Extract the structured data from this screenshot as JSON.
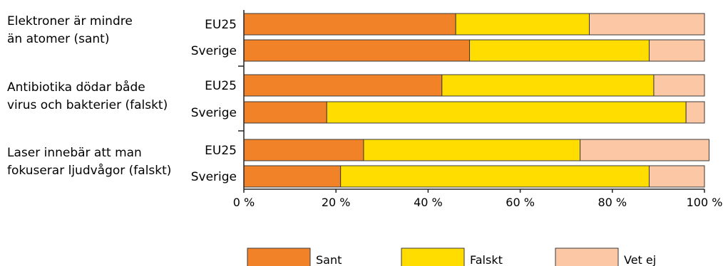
{
  "chart_data": {
    "type": "bar",
    "orientation": "horizontal",
    "stacked": true,
    "title": "",
    "xlabel": "",
    "ylabel": "",
    "xlim": [
      0,
      100
    ],
    "x_ticks": [
      "0 %",
      "20 %",
      "40 %",
      "60 %",
      "80 %",
      "100 %"
    ],
    "groups": [
      {
        "question_lines": [
          "Elektroner är mindre",
          "än atomer (sant)"
        ],
        "rows": [
          {
            "label": "EU25",
            "values": [
              46,
              29,
              25
            ]
          },
          {
            "label": "Sverige",
            "values": [
              49,
              39,
              12
            ]
          }
        ]
      },
      {
        "question_lines": [
          "Antibiotika dödar både",
          "virus och bakterier (falskt)"
        ],
        "rows": [
          {
            "label": "EU25",
            "values": [
              43,
              46,
              11
            ]
          },
          {
            "label": "Sverige",
            "values": [
              18,
              78,
              4
            ]
          }
        ]
      },
      {
        "question_lines": [
          "Laser innebär att man",
          "fokuserar ljudvågor (falskt)"
        ],
        "rows": [
          {
            "label": "EU25",
            "values": [
              26,
              47,
              28
            ]
          },
          {
            "label": "Sverige",
            "values": [
              21,
              67,
              12
            ]
          }
        ]
      }
    ],
    "series": [
      {
        "name": "Sant",
        "color": "#f28228"
      },
      {
        "name": "Falskt",
        "color": "#ffdd00"
      },
      {
        "name": "Vet ej",
        "color": "#fbc7a4"
      }
    ],
    "legend_position": "bottom"
  }
}
